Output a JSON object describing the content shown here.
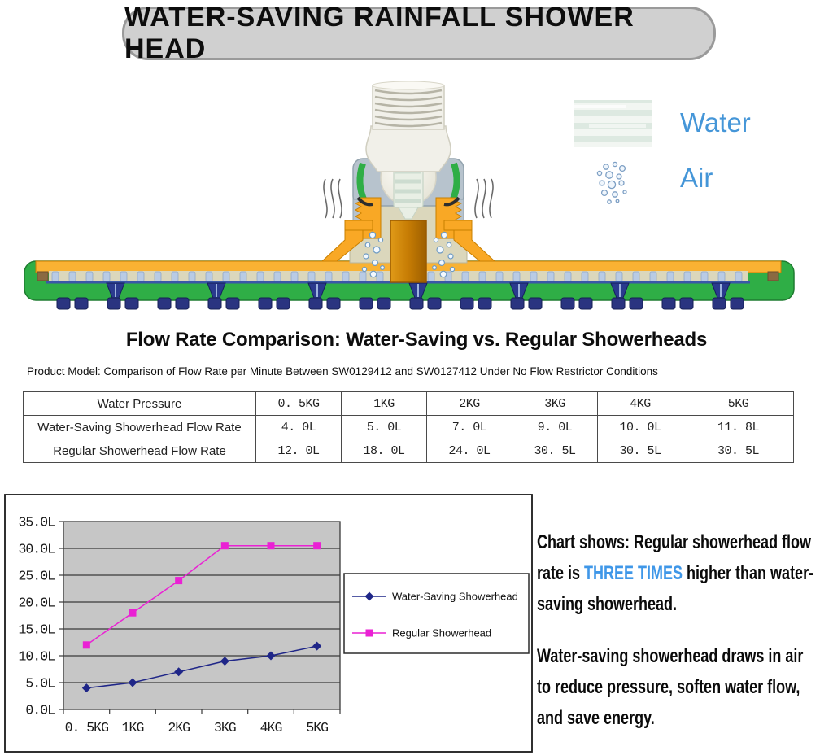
{
  "banner": {
    "title": "WATER-SAVING RAINFALL SHOWER HEAD"
  },
  "diagram": {
    "legend": [
      {
        "icon": "water-stripes-icon",
        "label": "Water"
      },
      {
        "icon": "air-bubbles-icon",
        "label": "Air"
      }
    ]
  },
  "section": {
    "title": "Flow Rate Comparison: Water-Saving vs. Regular Showerheads",
    "subtitle": "Product Model: Comparison of Flow Rate per Minute Between SW0129412 and SW0127412 Under No Flow Restrictor Conditions"
  },
  "table": {
    "header_label": "Water Pressure",
    "pressures": [
      "0. 5KG",
      "1KG",
      "2KG",
      "3KG",
      "4KG",
      "5KG"
    ],
    "rows": [
      {
        "label": "Water-Saving Showerhead Flow Rate",
        "values": [
          "4. 0L",
          "5. 0L",
          "7. 0L",
          "9. 0L",
          "10. 0L",
          "11. 8L"
        ]
      },
      {
        "label": "Regular Showerhead Flow Rate",
        "values": [
          "12. 0L",
          "18. 0L",
          "24. 0L",
          "30. 5L",
          "30. 5L",
          "30. 5L"
        ]
      }
    ]
  },
  "chart_data": {
    "type": "line",
    "title": "Flow Rate Comparison: Water-Saving vs. Regular Showerheads",
    "categories": [
      "0. 5KG",
      "1KG",
      "2KG",
      "3KG",
      "4KG",
      "5KG"
    ],
    "series": [
      {
        "name": "Water-Saving Showerhead",
        "values": [
          4.0,
          5.0,
          7.0,
          9.0,
          10.0,
          11.8
        ],
        "color": "#1f2688",
        "marker": "diamond"
      },
      {
        "name": "Regular Showerhead",
        "values": [
          12.0,
          18.0,
          24.0,
          30.5,
          30.5,
          30.5
        ],
        "color": "#ea21d4",
        "marker": "square"
      }
    ],
    "xlabel": "",
    "ylabel": "",
    "ylim": [
      0,
      35
    ],
    "ytick_step": 5,
    "ytick_suffix": "L",
    "grid": true,
    "plot_bg": "#c6c6c6",
    "legend_position": "right"
  },
  "notes": {
    "p1_pre": "Chart shows: Regular showerhead flow\nrate is ",
    "p1_highlight": "THREE TIMES",
    "p1_post": " higher than water-\nsaving showerhead.",
    "p2": "Water-saving showerhead draws in air\nto reduce pressure, soften water flow,\nand save energy.",
    "highlight_color": "#3f97e8"
  }
}
